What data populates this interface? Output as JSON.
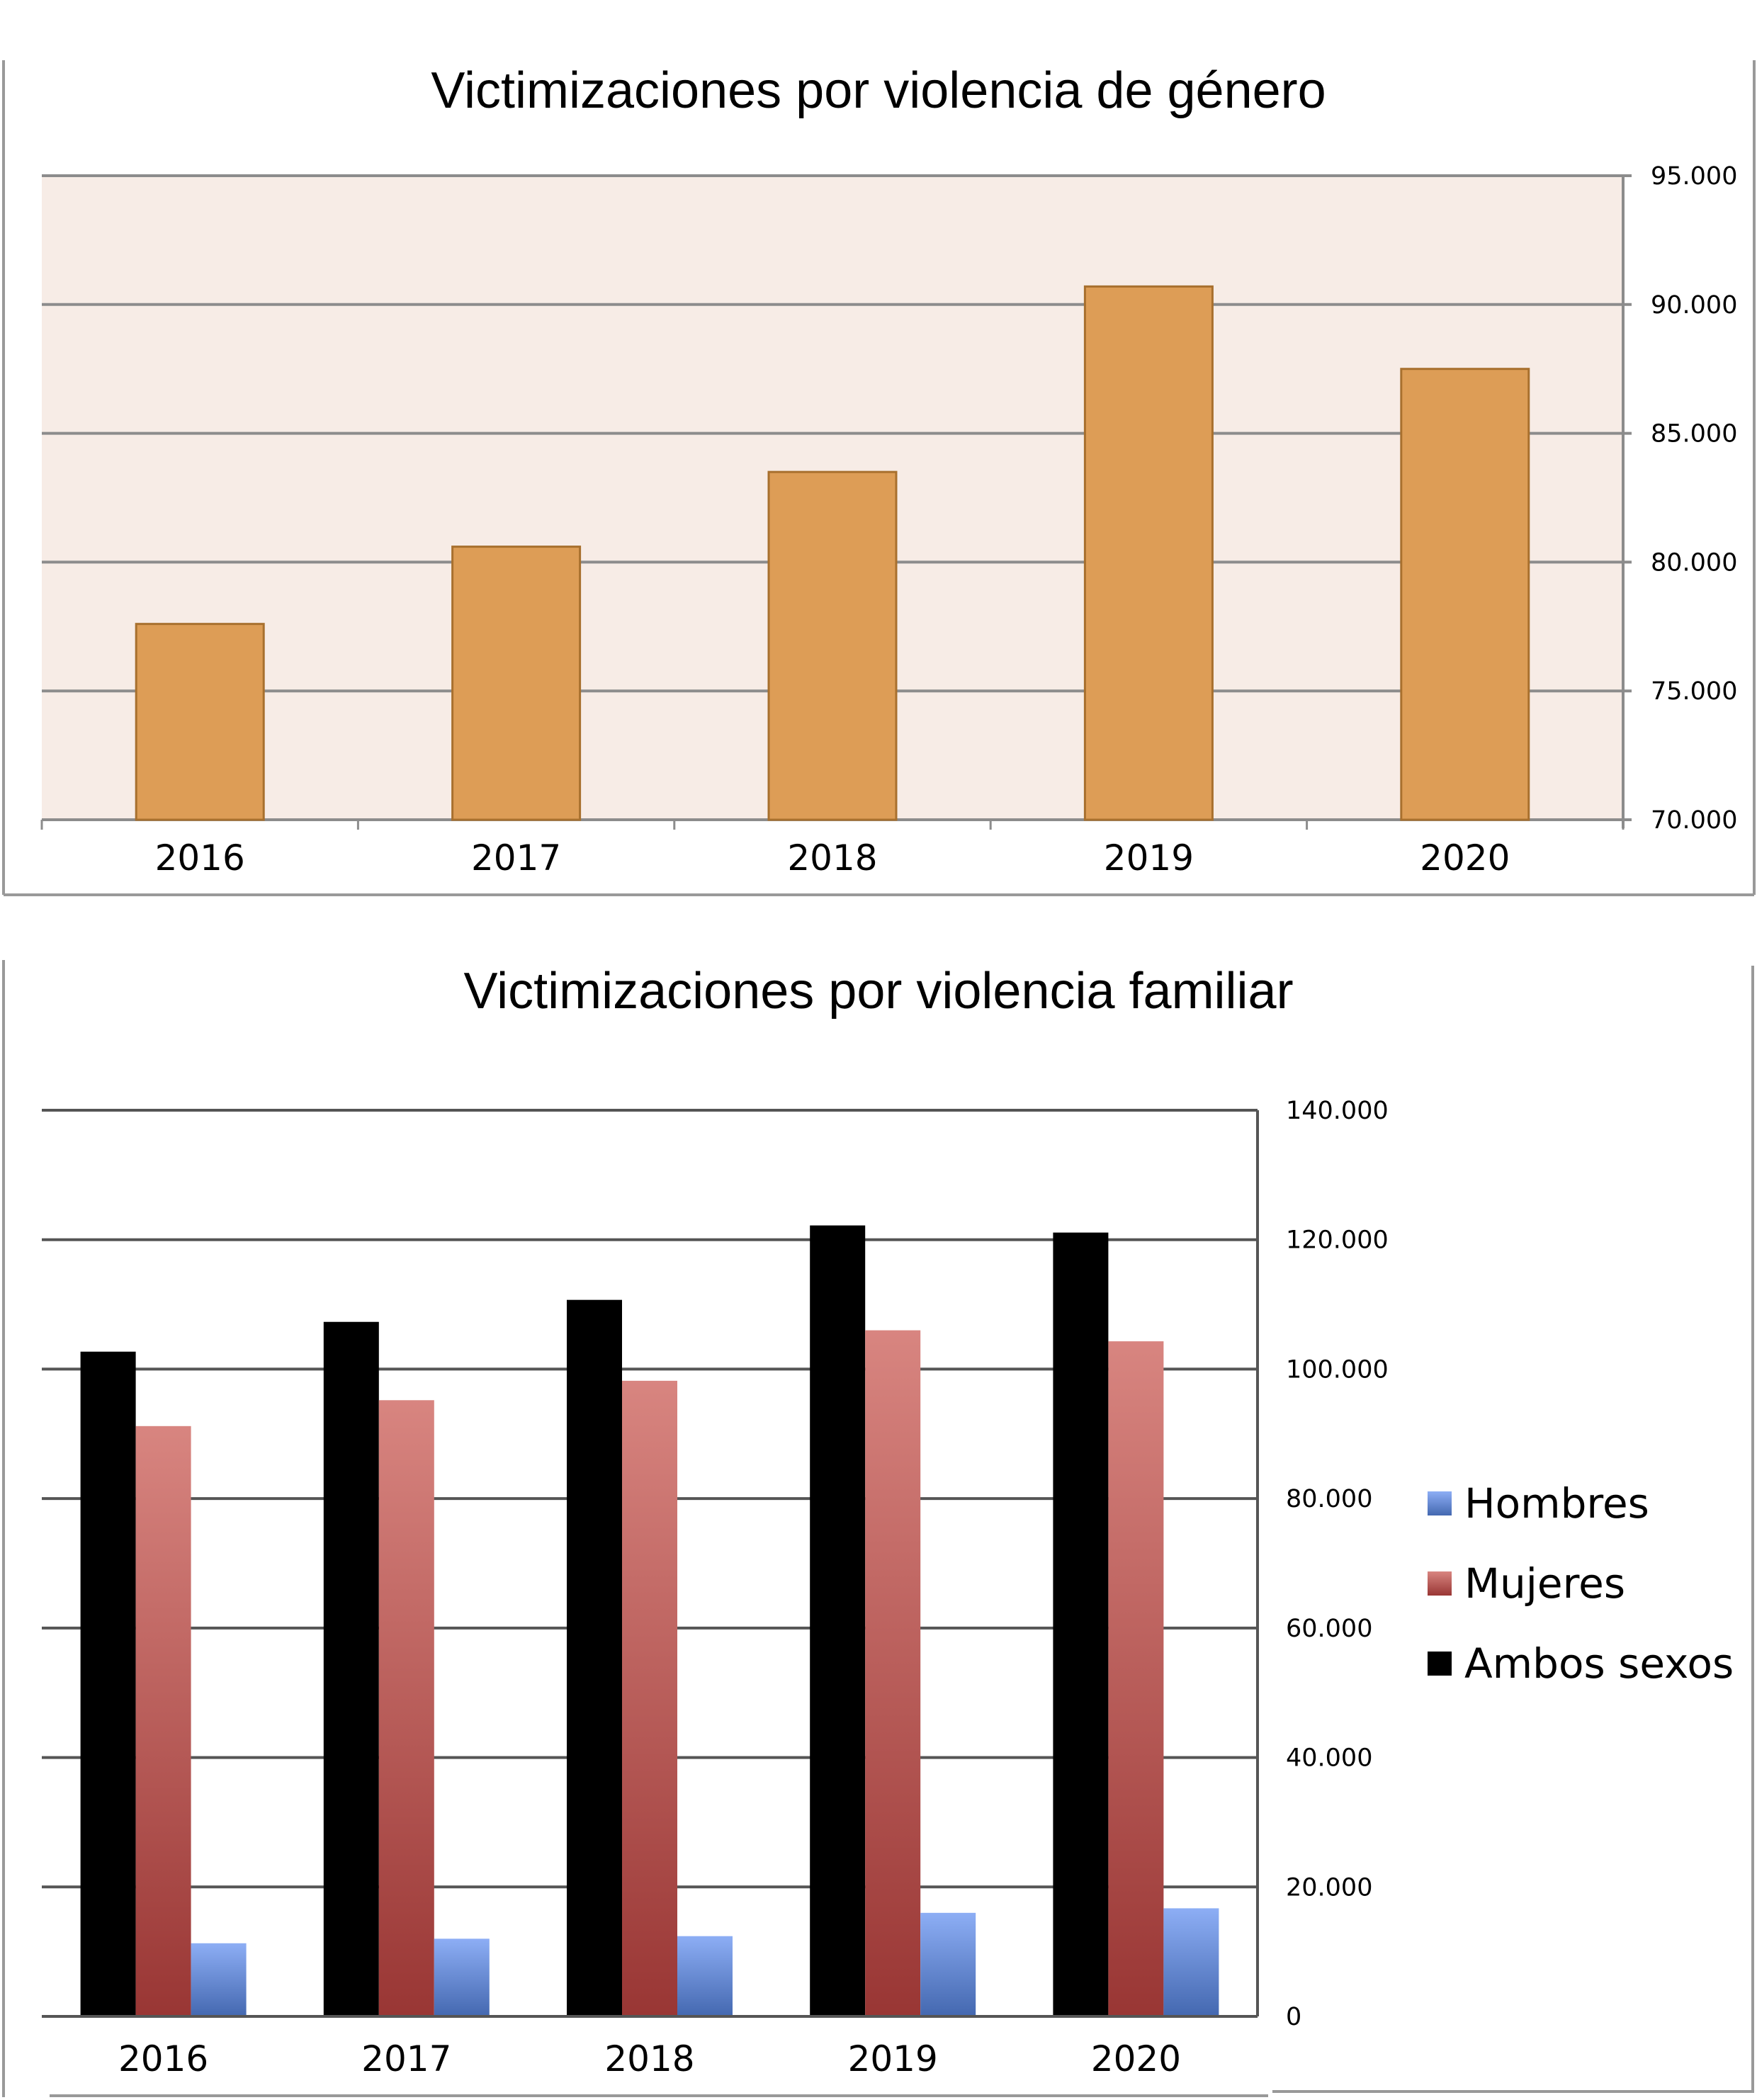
{
  "chart_data": [
    {
      "type": "bar",
      "title": "Victimizaciones por violencia de género",
      "categories": [
        "2016",
        "2017",
        "2018",
        "2019",
        "2020"
      ],
      "values": [
        77600,
        80600,
        83500,
        90700,
        87500
      ],
      "ylim": [
        70000,
        95000
      ],
      "yticks": [
        70000,
        75000,
        80000,
        85000,
        90000,
        95000
      ],
      "ytick_labels": [
        "70.000",
        "75.000",
        "80.000",
        "85.000",
        "90.000",
        "95.000"
      ],
      "yaxis_position": "right",
      "grid": true,
      "color": "#DD9D56"
    },
    {
      "type": "bar",
      "title": "Victimizaciones por violencia familiar",
      "categories": [
        "2016",
        "2017",
        "2018",
        "2019",
        "2020"
      ],
      "series": [
        {
          "name": "Ambos sexos",
          "values": [
            102700,
            107300,
            110700,
            122200,
            121100
          ],
          "color": "#9BBB59"
        },
        {
          "name": "Mujeres",
          "values": [
            91200,
            95200,
            98200,
            106000,
            104300
          ],
          "color": "#C0504D"
        },
        {
          "name": "Hombres",
          "values": [
            11300,
            12000,
            12400,
            16000,
            16700
          ],
          "color": "#4F81BD"
        }
      ],
      "legend_order": [
        "Hombres",
        "Mujeres",
        "Ambos sexos"
      ],
      "ylim": [
        0,
        140000
      ],
      "yticks": [
        0,
        20000,
        40000,
        60000,
        80000,
        100000,
        120000,
        140000
      ],
      "ytick_labels": [
        "0",
        "20.000",
        "40.000",
        "60.000",
        "80.000",
        "100.000",
        "120.000",
        "140.000"
      ],
      "yaxis_position": "right",
      "legend": "right",
      "grid": true
    }
  ]
}
